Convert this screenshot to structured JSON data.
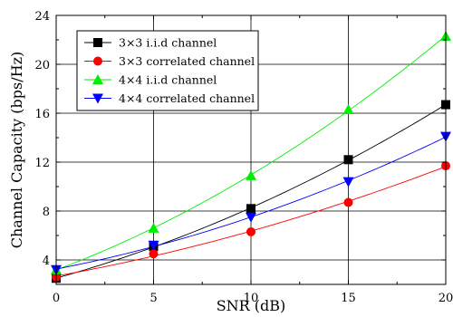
{
  "chart_data": {
    "type": "line",
    "title": "",
    "xlabel": "SNR (dB)",
    "ylabel": "Channel Capacity (bps/Hz)",
    "xlim": [
      0,
      20
    ],
    "ylim": [
      2,
      24
    ],
    "xticks": [
      0,
      5,
      10,
      15,
      20
    ],
    "yticks": [
      4,
      8,
      12,
      16,
      20,
      24
    ],
    "grid": true,
    "legend_position": "top-left",
    "series": [
      {
        "name": "3×3 i.i.d channel",
        "color": "#000000",
        "marker": "square",
        "x": [
          0,
          5,
          10,
          15,
          20
        ],
        "y": [
          2.5,
          5.1,
          8.2,
          12.2,
          16.7
        ]
      },
      {
        "name": "3×3 correlated channel",
        "color": "#ff0000",
        "marker": "circle",
        "x": [
          0,
          5,
          10,
          15,
          20
        ],
        "y": [
          2.6,
          4.5,
          6.3,
          8.7,
          11.7
        ]
      },
      {
        "name": "4×4 i.i.d channel",
        "color": "#00ee00",
        "marker": "triangle-up",
        "x": [
          0,
          5,
          10,
          15,
          20
        ],
        "y": [
          3.2,
          6.6,
          10.9,
          16.3,
          22.3
        ]
      },
      {
        "name": "4×4 correlated channel",
        "color": "#0000ff",
        "marker": "triangle-down",
        "x": [
          0,
          5,
          10,
          15,
          20
        ],
        "y": [
          3.2,
          5.2,
          7.5,
          10.4,
          14.1
        ]
      }
    ]
  }
}
